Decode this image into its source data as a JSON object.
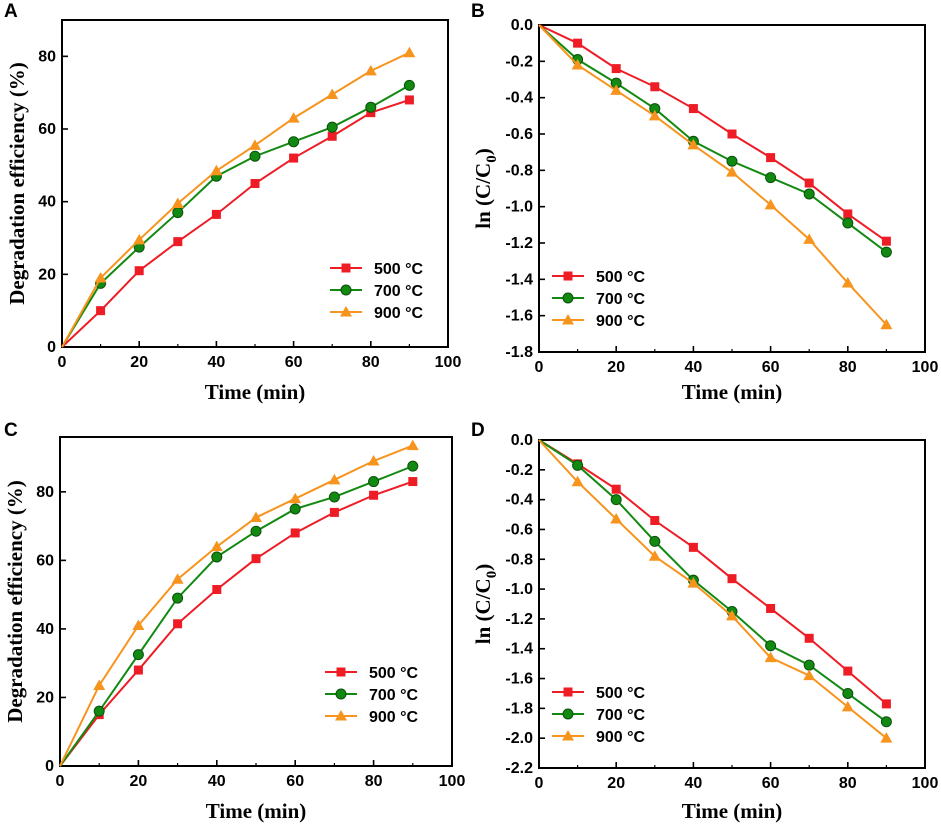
{
  "colors": {
    "500": "#ee1c25",
    "700": "#128a12",
    "900": "#f7941d",
    "axis": "#000000"
  },
  "chart_data": [
    {
      "panel": "A",
      "type": "line",
      "xlabel": "Time (min)",
      "ylabel": "Degradation efficiency (%)",
      "xlim": [
        0,
        100
      ],
      "ylim": [
        0,
        90
      ],
      "xticks": [
        "0",
        "20",
        "40",
        "60",
        "80",
        "100"
      ],
      "yticks": [
        "0",
        "20",
        "40",
        "60",
        "80"
      ],
      "legend_position": "bottom-right",
      "x": [
        0,
        10,
        20,
        30,
        40,
        50,
        60,
        70,
        80,
        90
      ],
      "series": [
        {
          "name": "500 °C",
          "marker": "square",
          "values": [
            0,
            10.0,
            21.0,
            29.0,
            36.5,
            45.0,
            52.0,
            58.0,
            64.5,
            68.0
          ]
        },
        {
          "name": "700 °C",
          "marker": "circle",
          "values": [
            0,
            17.5,
            27.5,
            37.0,
            47.0,
            52.5,
            56.5,
            60.5,
            66.0,
            72.0
          ]
        },
        {
          "name": "900 °C",
          "marker": "triangle",
          "values": [
            0,
            19.0,
            29.5,
            39.5,
            48.5,
            55.5,
            63.0,
            69.5,
            76.0,
            81.0
          ]
        }
      ]
    },
    {
      "panel": "B",
      "type": "line",
      "xlabel": "Time (min)",
      "ylabel": "ln (C/C0)",
      "ylabel_main": "ln (C/C",
      "ylabel_sub": "0",
      "ylabel_tail": ")",
      "xlim": [
        0,
        100
      ],
      "ylim": [
        -1.8,
        0
      ],
      "xticks": [
        "0",
        "20",
        "40",
        "60",
        "80",
        "100"
      ],
      "yticks": [
        "0.0",
        "-0.2",
        "-0.4",
        "-0.6",
        "-0.8",
        "-1.0",
        "-1.2",
        "-1.4",
        "-1.6",
        "-1.8"
      ],
      "legend_position": "bottom-left",
      "x": [
        0,
        10,
        20,
        30,
        40,
        50,
        60,
        70,
        80,
        90
      ],
      "series": [
        {
          "name": "500 °C",
          "marker": "square",
          "values": [
            0,
            -0.1,
            -0.24,
            -0.34,
            -0.46,
            -0.6,
            -0.73,
            -0.87,
            -1.04,
            -1.19
          ]
        },
        {
          "name": "700 °C",
          "marker": "circle",
          "values": [
            0,
            -0.19,
            -0.32,
            -0.46,
            -0.64,
            -0.75,
            -0.84,
            -0.93,
            -1.09,
            -1.25
          ]
        },
        {
          "name": "900 °C",
          "marker": "triangle",
          "values": [
            0,
            -0.22,
            -0.36,
            -0.5,
            -0.66,
            -0.81,
            -0.99,
            -1.18,
            -1.42,
            -1.65
          ]
        }
      ]
    },
    {
      "panel": "C",
      "type": "line",
      "xlabel": "Time (min)",
      "ylabel": "Degradation efficiency (%)",
      "xlim": [
        0,
        100
      ],
      "ylim": [
        0,
        96
      ],
      "xticks": [
        "0",
        "20",
        "40",
        "60",
        "80",
        "100"
      ],
      "yticks": [
        "0",
        "20",
        "40",
        "60",
        "80"
      ],
      "legend_position": "bottom-right",
      "x": [
        0,
        10,
        20,
        30,
        40,
        50,
        60,
        70,
        80,
        90
      ],
      "series": [
        {
          "name": "500 °C",
          "marker": "square",
          "values": [
            0,
            15.0,
            28.0,
            41.5,
            51.5,
            60.5,
            68.0,
            74.0,
            79.0,
            83.0
          ]
        },
        {
          "name": "700 °C",
          "marker": "circle",
          "values": [
            0,
            16.0,
            32.5,
            49.0,
            61.0,
            68.5,
            75.0,
            78.5,
            83.0,
            87.5
          ]
        },
        {
          "name": "900 °C",
          "marker": "triangle",
          "values": [
            0,
            23.5,
            41.0,
            54.5,
            64.0,
            72.5,
            78.0,
            83.5,
            89.0,
            93.5
          ]
        }
      ]
    },
    {
      "panel": "D",
      "type": "line",
      "xlabel": "Time (min)",
      "ylabel": "ln (C/C0)",
      "ylabel_main": "ln (C/C",
      "ylabel_sub": "0",
      "ylabel_tail": ")",
      "xlim": [
        0,
        100
      ],
      "ylim": [
        -2.2,
        0
      ],
      "xticks": [
        "0",
        "20",
        "40",
        "60",
        "80",
        "100"
      ],
      "yticks": [
        "0.0",
        "-0.2",
        "-0.4",
        "-0.6",
        "-0.8",
        "-1.0",
        "-1.2",
        "-1.4",
        "-1.6",
        "-1.8",
        "-2.0",
        "-2.2"
      ],
      "legend_position": "bottom-left",
      "x": [
        0,
        10,
        20,
        30,
        40,
        50,
        60,
        70,
        80,
        90
      ],
      "series": [
        {
          "name": "500 °C",
          "marker": "square",
          "values": [
            0,
            -0.16,
            -0.33,
            -0.54,
            -0.72,
            -0.93,
            -1.13,
            -1.33,
            -1.55,
            -1.77
          ]
        },
        {
          "name": "700 °C",
          "marker": "circle",
          "values": [
            0,
            -0.17,
            -0.4,
            -0.68,
            -0.94,
            -1.15,
            -1.38,
            -1.51,
            -1.7,
            -1.89
          ]
        },
        {
          "name": "900 °C",
          "marker": "triangle",
          "values": [
            0,
            -0.28,
            -0.53,
            -0.78,
            -0.96,
            -1.18,
            -1.46,
            -1.58,
            -1.79,
            -2.0
          ]
        }
      ]
    }
  ]
}
